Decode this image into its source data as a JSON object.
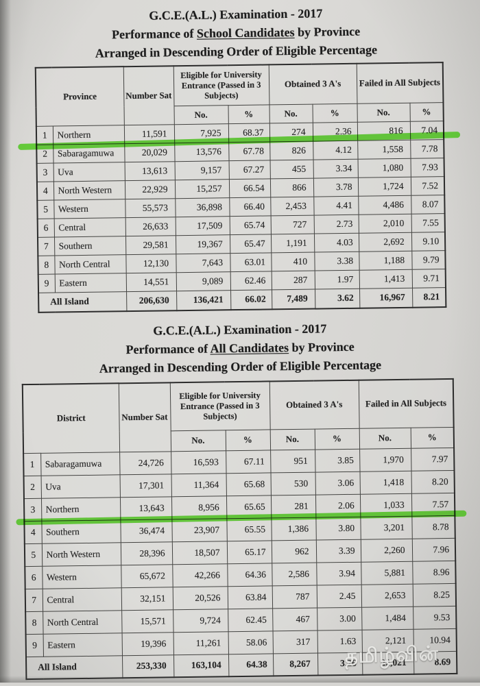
{
  "colors": {
    "highlight_green": "#53c724",
    "paper": "#d8d7d4",
    "ink": "#242424"
  },
  "watermark": {
    "text": "தமிழ்வின்"
  },
  "section_school": {
    "title": "G.C.E.(A.L.) Examination - 2017",
    "subtitle_prefix": "Performance of ",
    "subtitle_underlined": "School Candidates",
    "subtitle_suffix": " by Province",
    "subtitle2": "Arranged in Descending Order of Eligible Percentage",
    "table": {
      "label_header": "Province",
      "number_sat_header": "Number Sat",
      "eligible_header": "Eligible for University Entrance (Passed in 3 Subjects)",
      "obtained_header": "Obtained 3 A's",
      "failed_header": "Failed in All Subjects",
      "no_header": "No.",
      "pct_header": "%",
      "rows": [
        {
          "rank": "1",
          "name": "Northern",
          "number_sat": "11,591",
          "eligible_no": "7,925",
          "eligible_pct": "68.37",
          "three_as_no": "274",
          "three_as_pct": "2.36",
          "failed_no": "816",
          "failed_pct": "7.04",
          "highlighted": true
        },
        {
          "rank": "2",
          "name": "Sabaragamuwa",
          "number_sat": "20,029",
          "eligible_no": "13,576",
          "eligible_pct": "67.78",
          "three_as_no": "826",
          "three_as_pct": "4.12",
          "failed_no": "1,558",
          "failed_pct": "7.78",
          "highlighted": false
        },
        {
          "rank": "3",
          "name": "Uva",
          "number_sat": "13,613",
          "eligible_no": "9,157",
          "eligible_pct": "67.27",
          "three_as_no": "455",
          "three_as_pct": "3.34",
          "failed_no": "1,080",
          "failed_pct": "7.93",
          "highlighted": false
        },
        {
          "rank": "4",
          "name": "North Western",
          "number_sat": "22,929",
          "eligible_no": "15,257",
          "eligible_pct": "66.54",
          "three_as_no": "866",
          "three_as_pct": "3.78",
          "failed_no": "1,724",
          "failed_pct": "7.52",
          "highlighted": false
        },
        {
          "rank": "5",
          "name": "Western",
          "number_sat": "55,573",
          "eligible_no": "36,898",
          "eligible_pct": "66.40",
          "three_as_no": "2,453",
          "three_as_pct": "4.41",
          "failed_no": "4,486",
          "failed_pct": "8.07",
          "highlighted": false
        },
        {
          "rank": "6",
          "name": "Central",
          "number_sat": "26,633",
          "eligible_no": "17,509",
          "eligible_pct": "65.74",
          "three_as_no": "727",
          "three_as_pct": "2.73",
          "failed_no": "2,010",
          "failed_pct": "7.55",
          "highlighted": false
        },
        {
          "rank": "7",
          "name": "Southern",
          "number_sat": "29,581",
          "eligible_no": "19,367",
          "eligible_pct": "65.47",
          "three_as_no": "1,191",
          "three_as_pct": "4.03",
          "failed_no": "2,692",
          "failed_pct": "9.10",
          "highlighted": false
        },
        {
          "rank": "8",
          "name": "North Central",
          "number_sat": "12,130",
          "eligible_no": "7,643",
          "eligible_pct": "63.01",
          "three_as_no": "410",
          "three_as_pct": "3.38",
          "failed_no": "1,188",
          "failed_pct": "9.79",
          "highlighted": false
        },
        {
          "rank": "9",
          "name": "Eastern",
          "number_sat": "14,551",
          "eligible_no": "9,089",
          "eligible_pct": "62.46",
          "three_as_no": "287",
          "three_as_pct": "1.97",
          "failed_no": "1,413",
          "failed_pct": "9.71",
          "highlighted": false
        }
      ],
      "total": {
        "label": "All Island",
        "number_sat": "206,630",
        "eligible_no": "136,421",
        "eligible_pct": "66.02",
        "three_as_no": "7,489",
        "three_as_pct": "3.62",
        "failed_no": "16,967",
        "failed_pct": "8.21"
      }
    }
  },
  "section_all": {
    "title": "G.C.E.(A.L.) Examination - 2017",
    "subtitle_prefix": "Performance of ",
    "subtitle_underlined": "All Candidates",
    "subtitle_suffix": " by Province",
    "subtitle2": "Arranged in Descending Order of Eligible Percentage",
    "table": {
      "label_header": "District",
      "number_sat_header": "Number Sat",
      "eligible_header": "Eligible for University Entrance (Passed in 3 Subjects)",
      "obtained_header": "Obtained 3 A's",
      "failed_header": "Failed in All Subjects",
      "no_header": "No.",
      "pct_header": "%",
      "rows": [
        {
          "rank": "1",
          "name": "Sabaragamuwa",
          "number_sat": "24,726",
          "eligible_no": "16,593",
          "eligible_pct": "67.11",
          "three_as_no": "951",
          "three_as_pct": "3.85",
          "failed_no": "1,970",
          "failed_pct": "7.97",
          "highlighted": false
        },
        {
          "rank": "2",
          "name": "Uva",
          "number_sat": "17,301",
          "eligible_no": "11,364",
          "eligible_pct": "65.68",
          "three_as_no": "530",
          "three_as_pct": "3.06",
          "failed_no": "1,418",
          "failed_pct": "8.20",
          "highlighted": false
        },
        {
          "rank": "3",
          "name": "Northern",
          "number_sat": "13,643",
          "eligible_no": "8,956",
          "eligible_pct": "65.65",
          "three_as_no": "281",
          "three_as_pct": "2.06",
          "failed_no": "1,033",
          "failed_pct": "7.57",
          "highlighted": true
        },
        {
          "rank": "4",
          "name": "Southern",
          "number_sat": "36,474",
          "eligible_no": "23,907",
          "eligible_pct": "65.55",
          "three_as_no": "1,386",
          "three_as_pct": "3.80",
          "failed_no": "3,201",
          "failed_pct": "8.78",
          "highlighted": false
        },
        {
          "rank": "5",
          "name": "North Western",
          "number_sat": "28,396",
          "eligible_no": "18,507",
          "eligible_pct": "65.17",
          "three_as_no": "962",
          "three_as_pct": "3.39",
          "failed_no": "2,260",
          "failed_pct": "7.96",
          "highlighted": false
        },
        {
          "rank": "6",
          "name": "Western",
          "number_sat": "65,672",
          "eligible_no": "42,266",
          "eligible_pct": "64.36",
          "three_as_no": "2,586",
          "three_as_pct": "3.94",
          "failed_no": "5,881",
          "failed_pct": "8.96",
          "highlighted": false
        },
        {
          "rank": "7",
          "name": "Central",
          "number_sat": "32,151",
          "eligible_no": "20,526",
          "eligible_pct": "63.84",
          "three_as_no": "787",
          "three_as_pct": "2.45",
          "failed_no": "2,653",
          "failed_pct": "8.25",
          "highlighted": false
        },
        {
          "rank": "8",
          "name": "North Central",
          "number_sat": "15,571",
          "eligible_no": "9,724",
          "eligible_pct": "62.45",
          "three_as_no": "467",
          "three_as_pct": "3.00",
          "failed_no": "1,484",
          "failed_pct": "9.53",
          "highlighted": false
        },
        {
          "rank": "9",
          "name": "Eastern",
          "number_sat": "19,396",
          "eligible_no": "11,261",
          "eligible_pct": "58.06",
          "three_as_no": "317",
          "three_as_pct": "1.63",
          "failed_no": "2,121",
          "failed_pct": "10.94",
          "highlighted": false
        }
      ],
      "total": {
        "label": "All Island",
        "number_sat": "253,330",
        "eligible_no": "163,104",
        "eligible_pct": "64.38",
        "three_as_no": "8,267",
        "three_as_pct": "3.26",
        "failed_no": "22,021",
        "failed_pct": "8.69"
      }
    }
  }
}
